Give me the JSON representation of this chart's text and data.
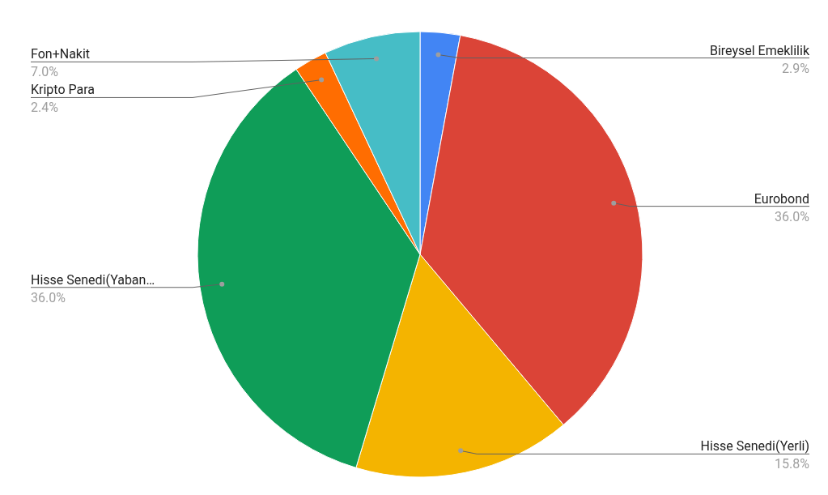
{
  "chart_data": {
    "type": "pie",
    "categories": [
      "Bireysel Emeklilik",
      "Eurobond",
      "Hisse Senedi(Yerli)",
      "Hisse Senedi(Yaban…",
      "Kripto Para",
      "Fon+Nakit"
    ],
    "values": [
      2.9,
      36.0,
      15.8,
      36.0,
      2.4,
      7.0
    ],
    "colors": [
      "#4285f4",
      "#db4437",
      "#f4b400",
      "#0f9d58",
      "#ff6d01",
      "#46bdc6"
    ],
    "value_labels": [
      "2.9%",
      "36.0%",
      "15.8%",
      "36.0%",
      "2.4%",
      "7.0%"
    ],
    "legend": false
  }
}
